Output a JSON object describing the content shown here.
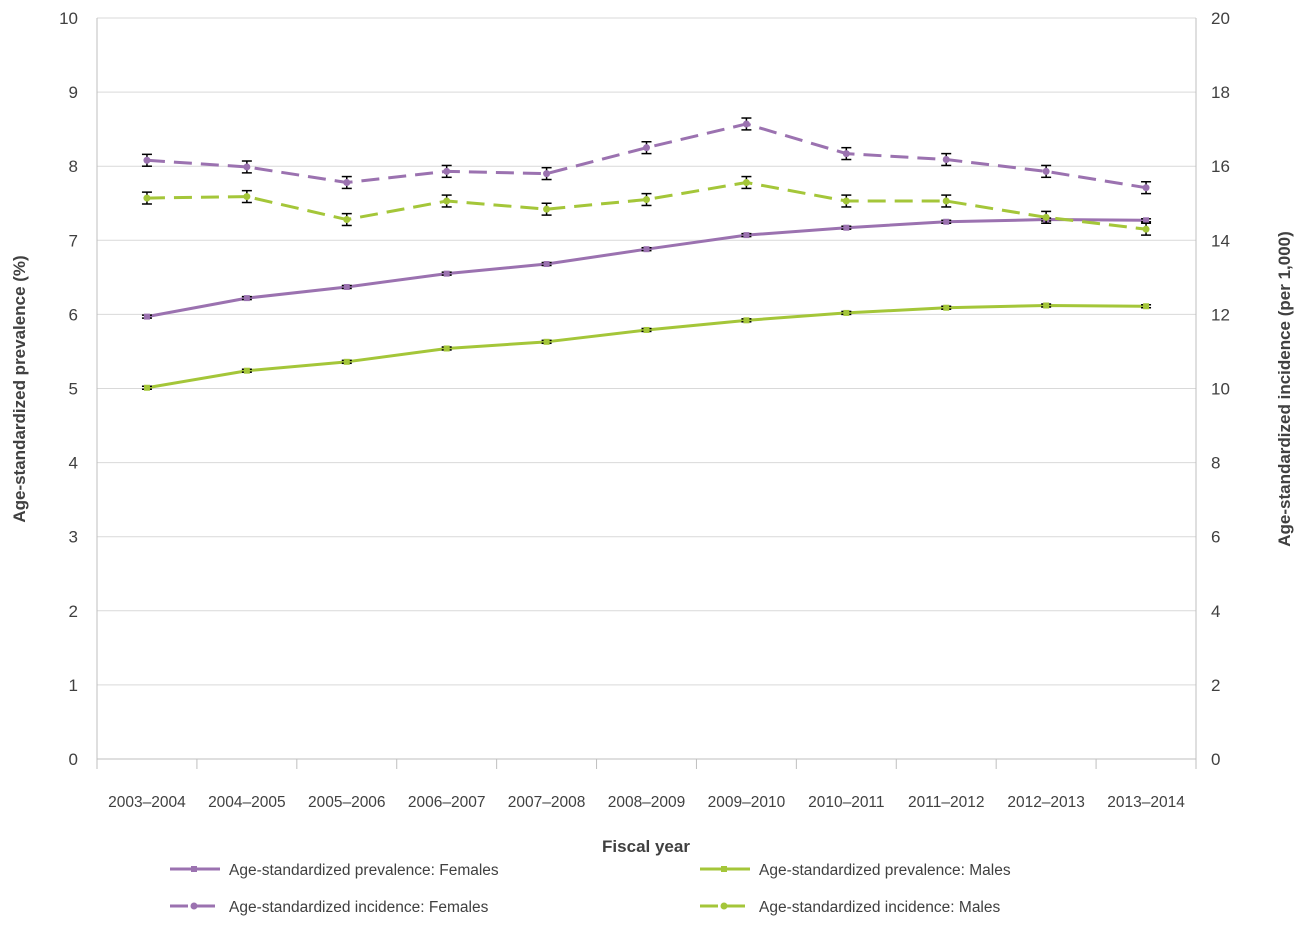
{
  "chart_data": {
    "type": "line",
    "title": "",
    "xlabel": "Fiscal year",
    "ylabel_left": "Age-standardized prevalence (%)",
    "ylabel_right": "Age-standardized incidence (per 1,000)",
    "categories": [
      "2003–2004",
      "2004–2005",
      "2005–2006",
      "2006–2007",
      "2007–2008",
      "2008–2009",
      "2009–2010",
      "2010–2011",
      "2011–2012",
      "2012–2013",
      "2013–2014"
    ],
    "ylim_left": [
      0,
      10
    ],
    "ylim_right": [
      0,
      20
    ],
    "yticks_left": [
      0,
      1,
      2,
      3,
      4,
      5,
      6,
      7,
      8,
      9,
      10
    ],
    "yticks_right": [
      0,
      2,
      4,
      6,
      8,
      10,
      12,
      14,
      16,
      18,
      20
    ],
    "grid": true,
    "legend_position": "bottom",
    "series": [
      {
        "name": "Age-standardized prevalence: Females",
        "axis": "left",
        "style": "solid",
        "color": "#9b72b0",
        "marker": "square",
        "values": [
          5.97,
          6.22,
          6.37,
          6.55,
          6.68,
          6.88,
          7.07,
          7.17,
          7.25,
          7.28,
          7.27
        ],
        "error": [
          0.02,
          0.02,
          0.02,
          0.02,
          0.02,
          0.02,
          0.02,
          0.02,
          0.02,
          0.02,
          0.02
        ]
      },
      {
        "name": "Age-standardized prevalence: Males",
        "axis": "left",
        "style": "solid",
        "color": "#a4c639",
        "marker": "square",
        "values": [
          5.01,
          5.24,
          5.36,
          5.54,
          5.63,
          5.79,
          5.92,
          6.02,
          6.09,
          6.12,
          6.11
        ],
        "error": [
          0.02,
          0.02,
          0.02,
          0.02,
          0.02,
          0.02,
          0.02,
          0.02,
          0.02,
          0.02,
          0.02
        ]
      },
      {
        "name": "Age-standardized incidence: Females",
        "axis": "right",
        "style": "dashed",
        "color": "#9b72b0",
        "marker": "circle",
        "values": [
          16.16,
          15.98,
          15.56,
          15.86,
          15.8,
          16.5,
          17.14,
          16.34,
          16.18,
          15.86,
          15.42
        ],
        "error": [
          0.16,
          0.16,
          0.16,
          0.16,
          0.16,
          0.16,
          0.16,
          0.16,
          0.16,
          0.16,
          0.16
        ]
      },
      {
        "name": "Age-standardized incidence: Males",
        "axis": "right",
        "style": "dashed",
        "color": "#a4c639",
        "marker": "circle",
        "values": [
          15.14,
          15.18,
          14.56,
          15.06,
          14.84,
          15.1,
          15.56,
          15.06,
          15.06,
          14.62,
          14.3
        ],
        "error": [
          0.16,
          0.16,
          0.16,
          0.16,
          0.16,
          0.16,
          0.16,
          0.16,
          0.16,
          0.16,
          0.16
        ]
      }
    ]
  }
}
